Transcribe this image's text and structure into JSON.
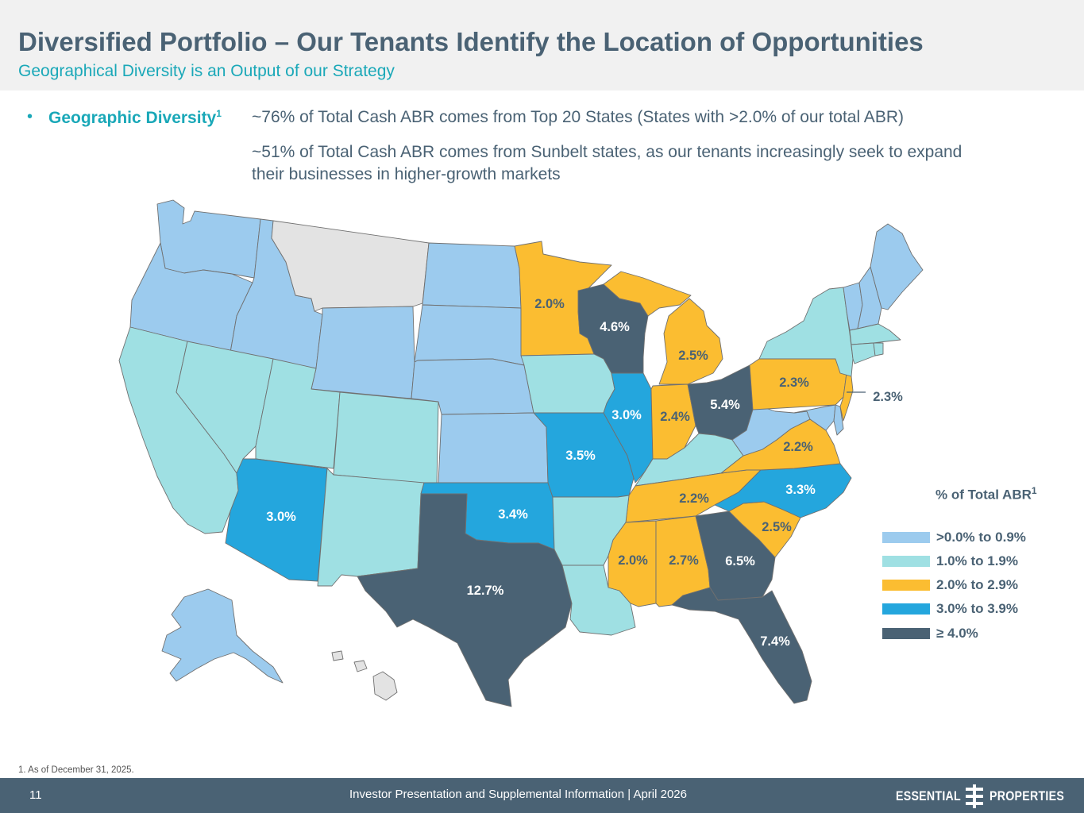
{
  "header": {
    "title": "Diversified Portfolio – Our Tenants Identify the Location of Opportunities",
    "subtitle": "Geographical Diversity is an Output of our Strategy"
  },
  "bullet": {
    "marker": "•",
    "label": "Geographic Diversity",
    "footnote_ref": "1",
    "statement_1": "~76% of Total Cash ABR comes from Top 20 States (States with >2.0% of our total ABR)",
    "statement_2": "~51% of Total Cash ABR comes from Sunbelt states, as our tenants increasingly seek to expand their businesses in higher-growth markets"
  },
  "legend": {
    "title": "% of Total ABR",
    "footnote_ref": "1",
    "items": [
      {
        "label": ">0.0% to 0.9%",
        "color": "#9ccbee"
      },
      {
        "label": "1.0% to 1.9%",
        "color": "#9fe0e3"
      },
      {
        "label": "2.0% to 2.9%",
        "color": "#fbbd31"
      },
      {
        "label": "3.0% to 3.9%",
        "color": "#24a6dd"
      },
      {
        "label": "≥ 4.0%",
        "color": "#4a6274"
      }
    ],
    "no_data_color": "#e3e3e3",
    "label_on_light_color": "#4a6274",
    "label_on_dark_color": "#ffffff"
  },
  "map_labels": {
    "texas": "12.7%",
    "florida": "7.4%",
    "georgia": "6.5%",
    "ohio": "5.4%",
    "wisconsin": "4.6%",
    "oklahoma": "3.4%",
    "missouri": "3.5%",
    "illinois": "3.0%",
    "arizona": "3.0%",
    "north_carolina": "3.3%",
    "minnesota": "2.0%",
    "michigan": "2.5%",
    "indiana": "2.4%",
    "pennsylvania": "2.3%",
    "new_jersey": "2.3%",
    "virginia": "2.2%",
    "tennessee": "2.2%",
    "south_carolina": "2.5%",
    "mississippi": "2.0%",
    "alabama": "2.7%"
  },
  "footnote": "1. As of December 31, 2025.",
  "footer": {
    "page_number": "11",
    "text": "Investor Presentation and Supplemental Information |  April 2026",
    "logo_left": "ESSENTIAL",
    "logo_right": "PROPERTIES"
  }
}
